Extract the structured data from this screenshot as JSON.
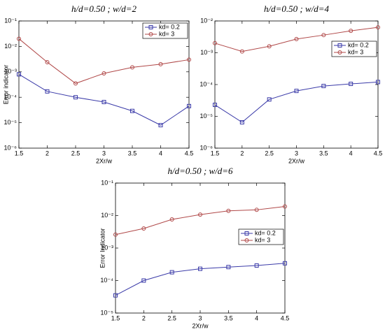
{
  "chart_data": [
    {
      "type": "line",
      "title": "h/d=0.50 ; w/d=2",
      "xlabel": "2Xr/w",
      "ylabel": "Error indicator",
      "x": [
        1.5,
        2,
        2.5,
        3,
        3.5,
        4,
        4.5
      ],
      "xlim": [
        1.5,
        4.5
      ],
      "xticks": [
        1.5,
        2,
        2.5,
        3,
        3.5,
        4,
        4.5
      ],
      "log_y": true,
      "ylim": [
        1e-06,
        0.1
      ],
      "yticks": [
        {
          "value": 1e-06,
          "label": "10⁻⁶"
        },
        {
          "value": 1e-05,
          "label": "10⁻⁵"
        },
        {
          "value": 0.0001,
          "label": "10⁻⁴"
        },
        {
          "value": 0.001,
          "label": "10⁻³"
        },
        {
          "value": 0.01,
          "label": "10⁻²"
        },
        {
          "value": 0.1,
          "label": "10⁻¹"
        }
      ],
      "legend": "upper right",
      "series": [
        {
          "name": "kd= 0.2",
          "color": "#3a3aa8",
          "marker": "square",
          "values": [
            0.0008,
            0.00017,
            0.0001,
            6.5e-05,
            2.9e-05,
            8e-06,
            4.5e-05
          ]
        },
        {
          "name": "kd= 3",
          "color": "#b04848",
          "marker": "circle",
          "values": [
            0.02,
            0.0024,
            0.00035,
            0.00087,
            0.0015,
            0.002,
            0.003
          ]
        }
      ]
    },
    {
      "type": "line",
      "title": "h/d=0.50 ; w/d=4",
      "xlabel": "2Xr/w",
      "x": [
        1.5,
        2,
        2.5,
        3,
        3.5,
        4,
        4.5
      ],
      "xlim": [
        1.5,
        4.5
      ],
      "xticks": [
        1.5,
        2,
        2.5,
        3,
        3.5,
        4,
        4.5
      ],
      "log_y": true,
      "ylim": [
        1e-06,
        0.01
      ],
      "yticks": [
        {
          "value": 1e-06,
          "label": "10⁻⁶"
        },
        {
          "value": 1e-05,
          "label": "10⁻⁵"
        },
        {
          "value": 0.0001,
          "label": "10⁻⁴"
        },
        {
          "value": 0.001,
          "label": "10⁻³"
        },
        {
          "value": 0.01,
          "label": "10⁻²"
        }
      ],
      "legend": "upper right",
      "series": [
        {
          "name": "kd= 0.2",
          "color": "#3a3aa8",
          "marker": "square",
          "values": [
            2.3e-05,
            6.5e-06,
            3.4e-05,
            6.3e-05,
            9e-05,
            0.000105,
            0.00012
          ]
        },
        {
          "name": "kd= 3",
          "color": "#b04848",
          "marker": "circle",
          "values": [
            0.002,
            0.0011,
            0.0016,
            0.0027,
            0.0036,
            0.0049,
            0.0063
          ]
        }
      ]
    },
    {
      "type": "line",
      "title": "h/d=0.50 ; w/d=6",
      "xlabel": "2Xr/w",
      "ylabel": "Error Indicator",
      "x": [
        1.5,
        2,
        2.5,
        3,
        3.5,
        4,
        4.5
      ],
      "xlim": [
        1.5,
        4.5
      ],
      "xticks": [
        1.5,
        2,
        2.5,
        3,
        3.5,
        4,
        4.5
      ],
      "log_y": true,
      "ylim": [
        1e-05,
        0.1
      ],
      "yticks": [
        {
          "value": 1e-05,
          "label": "10⁻⁵"
        },
        {
          "value": 0.0001,
          "label": "10⁻⁴"
        },
        {
          "value": 0.001,
          "label": "10⁻³"
        },
        {
          "value": 0.01,
          "label": "10⁻²"
        },
        {
          "value": 0.1,
          "label": "10⁻¹"
        }
      ],
      "legend": "right",
      "series": [
        {
          "name": "kd= 0.2",
          "color": "#3a3aa8",
          "marker": "square",
          "values": [
            3.5e-05,
            0.0001,
            0.00018,
            0.00023,
            0.00026,
            0.00029,
            0.00034
          ]
        },
        {
          "name": "kd= 3",
          "color": "#b04848",
          "marker": "circle",
          "values": [
            0.0026,
            0.004,
            0.0076,
            0.0107,
            0.014,
            0.015,
            0.019
          ]
        }
      ]
    }
  ]
}
